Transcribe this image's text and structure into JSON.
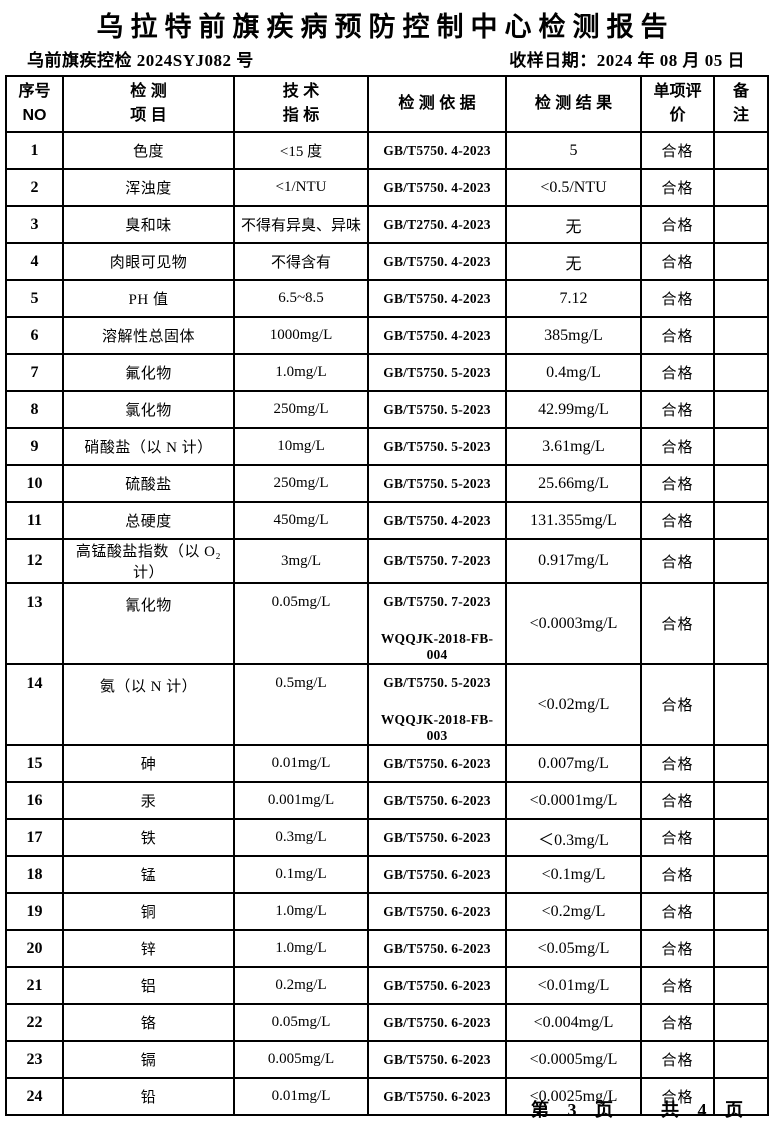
{
  "header": {
    "title": "乌拉特前旗疾病预防控制中心检测报告",
    "doc_no": "乌前旗疾控检 2024SYJ082 号",
    "sample_date": "收样日期：2024 年 08 月 05 日"
  },
  "table": {
    "columns": [
      {
        "line1": "序号",
        "line2": "NO"
      },
      {
        "line1": "检 测",
        "line2": "项 目"
      },
      {
        "line1": "技 术",
        "line2": "指 标"
      },
      {
        "line1": "检 测 依 据",
        "line2": ""
      },
      {
        "line1": "检 测 结 果",
        "line2": ""
      },
      {
        "line1": "单项评",
        "line2": "价"
      },
      {
        "line1": "备",
        "line2": "注"
      }
    ],
    "rows": [
      {
        "no": "1",
        "item": "色度",
        "standard": "<15 度",
        "basis": [
          "GB/T5750. 4-2023"
        ],
        "result": "5",
        "evaluation": "合格",
        "remark": ""
      },
      {
        "no": "2",
        "item": "浑浊度",
        "standard": "<1/NTU",
        "basis": [
          "GB/T5750. 4-2023"
        ],
        "result": "<0.5/NTU",
        "evaluation": "合格",
        "remark": ""
      },
      {
        "no": "3",
        "item": "臭和味",
        "standard": "不得有异臭、异味",
        "basis": [
          "GB/T2750. 4-2023"
        ],
        "result": "无",
        "evaluation": "合格",
        "remark": ""
      },
      {
        "no": "4",
        "item": "肉眼可见物",
        "standard": "不得含有",
        "basis": [
          "GB/T5750. 4-2023"
        ],
        "result": "无",
        "evaluation": "合格",
        "remark": ""
      },
      {
        "no": "5",
        "item": "PH 值",
        "standard": "6.5~8.5",
        "basis": [
          "GB/T5750. 4-2023"
        ],
        "result": "7.12",
        "evaluation": "合格",
        "remark": ""
      },
      {
        "no": "6",
        "item": "溶解性总固体",
        "standard": "1000mg/L",
        "basis": [
          "GB/T5750. 4-2023"
        ],
        "result": "385mg/L",
        "evaluation": "合格",
        "remark": ""
      },
      {
        "no": "7",
        "item": "氟化物",
        "standard": "1.0mg/L",
        "basis": [
          "GB/T5750. 5-2023"
        ],
        "result": "0.4mg/L",
        "evaluation": "合格",
        "remark": ""
      },
      {
        "no": "8",
        "item": "氯化物",
        "standard": "250mg/L",
        "basis": [
          "GB/T5750. 5-2023"
        ],
        "result": "42.99mg/L",
        "evaluation": "合格",
        "remark": ""
      },
      {
        "no": "9",
        "item": "硝酸盐（以 N 计）",
        "standard": "10mg/L",
        "basis": [
          "GB/T5750. 5-2023"
        ],
        "result": "3.61mg/L",
        "evaluation": "合格",
        "remark": ""
      },
      {
        "no": "10",
        "item": "硫酸盐",
        "standard": "250mg/L",
        "basis": [
          "GB/T5750. 5-2023"
        ],
        "result": "25.66mg/L",
        "evaluation": "合格",
        "remark": ""
      },
      {
        "no": "11",
        "item": "总硬度",
        "standard": "450mg/L",
        "basis": [
          "GB/T5750. 4-2023"
        ],
        "result": "131.355mg/L",
        "evaluation": "合格",
        "remark": ""
      },
      {
        "no": "12",
        "item": "高锰酸盐指数（以 O₂ 计）",
        "standard": "3mg/L",
        "basis": [
          "GB/T5750. 7-2023"
        ],
        "result": "0.917mg/L",
        "evaluation": "合格",
        "remark": ""
      },
      {
        "no": "13",
        "item": "氰化物",
        "standard": "0.05mg/L",
        "basis": [
          "GB/T5750. 7-2023",
          "WQQJK-2018-FB-004"
        ],
        "result": "<0.0003mg/L",
        "evaluation": "合格",
        "remark": ""
      },
      {
        "no": "14",
        "item": "氨（以 N 计）",
        "standard": "0.5mg/L",
        "basis": [
          "GB/T5750. 5-2023",
          "WQQJK-2018-FB-003"
        ],
        "result": "<0.02mg/L",
        "evaluation": "合格",
        "remark": ""
      },
      {
        "no": "15",
        "item": "砷",
        "standard": "0.01mg/L",
        "basis": [
          "GB/T5750. 6-2023"
        ],
        "result": "0.007mg/L",
        "evaluation": "合格",
        "remark": ""
      },
      {
        "no": "16",
        "item": "汞",
        "standard": "0.001mg/L",
        "basis": [
          "GB/T5750. 6-2023"
        ],
        "result": "<0.0001mg/L",
        "evaluation": "合格",
        "remark": ""
      },
      {
        "no": "17",
        "item": "铁",
        "standard": "0.3mg/L",
        "basis": [
          "GB/T5750. 6-2023"
        ],
        "result": "＜0.3mg/L",
        "evaluation": "合格",
        "remark": ""
      },
      {
        "no": "18",
        "item": "锰",
        "standard": "0.1mg/L",
        "basis": [
          "GB/T5750. 6-2023"
        ],
        "result": "<0.1mg/L",
        "evaluation": "合格",
        "remark": ""
      },
      {
        "no": "19",
        "item": "铜",
        "standard": "1.0mg/L",
        "basis": [
          "GB/T5750. 6-2023"
        ],
        "result": "<0.2mg/L",
        "evaluation": "合格",
        "remark": ""
      },
      {
        "no": "20",
        "item": "锌",
        "standard": "1.0mg/L",
        "basis": [
          "GB/T5750. 6-2023"
        ],
        "result": "<0.05mg/L",
        "evaluation": "合格",
        "remark": ""
      },
      {
        "no": "21",
        "item": "铝",
        "standard": "0.2mg/L",
        "basis": [
          "GB/T5750. 6-2023"
        ],
        "result": "<0.01mg/L",
        "evaluation": "合格",
        "remark": ""
      },
      {
        "no": "22",
        "item": "铬",
        "standard": "0.05mg/L",
        "basis": [
          "GB/T5750. 6-2023"
        ],
        "result": "<0.004mg/L",
        "evaluation": "合格",
        "remark": ""
      },
      {
        "no": "23",
        "item": "镉",
        "standard": "0.005mg/L",
        "basis": [
          "GB/T5750. 6-2023"
        ],
        "result": "<0.0005mg/L",
        "evaluation": "合格",
        "remark": ""
      },
      {
        "no": "24",
        "item": "铅",
        "standard": "0.01mg/L",
        "basis": [
          "GB/T5750. 6-2023"
        ],
        "result": "<0.0025mg/L",
        "evaluation": "合格",
        "remark": ""
      }
    ]
  },
  "footer": {
    "page": "第 3 页",
    "total": "共 4 页"
  }
}
